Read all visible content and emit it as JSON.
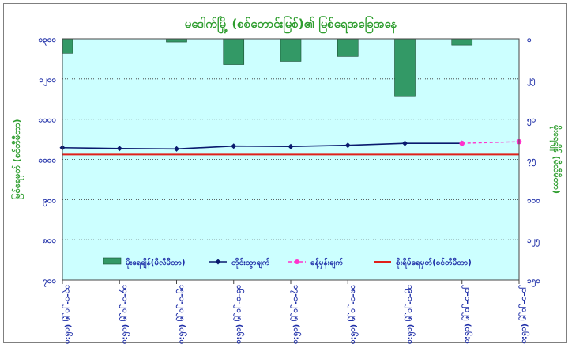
{
  "chart_data": {
    "type": "bar+line",
    "title": "မဒေါက်မြို့ (စစ်တောင်းမြစ်)၏ မြစ်ရေအခြေအနေ",
    "ylabel_left": "မြစ်ရေမှတ် (စင်တီမီတာ)",
    "ylabel_right": "မိုးရေချိန် (မီလီမီတာ)",
    "y_left": {
      "min": 700,
      "max": 1300,
      "ticks": [
        "၁၃၀၀",
        "၁၂၀၀",
        "၁၁၀၀",
        "၁၀၀၀",
        "၉၀၀",
        "၈၀၀",
        "၇၀၀"
      ],
      "tick_values": [
        1300,
        1200,
        1100,
        1000,
        900,
        800,
        700
      ]
    },
    "y_right": {
      "min": 0,
      "max": 150,
      "inverted": true,
      "ticks": [
        "၀",
        "၂၅",
        "၅၀",
        "၇၅",
        "၁၀၀",
        "၁၂၅",
        "၁၅၀"
      ],
      "tick_values": [
        0,
        25,
        50,
        75,
        100,
        125,
        150
      ]
    },
    "categories": [
      "၁၃-၁-၂၀၂၅ (၀၆:၀၀)",
      "၁၄-၁-၂၀၂၅ (၀၆:၀၀)",
      "၁၅-၁-၂၀၂၅ (၀၆:၀၀)",
      "၁၆-၁-၂၀၂၅ (၀၆:၀၀)",
      "၁၇-၁-၂၀၂၅ (၀၆:၀၀)",
      "၁၈-၁-၂၀၂၅ (၀၆:၀၀)",
      "၁၉-၁-၂၀၂၅ (၀၆:၀၀)",
      "၂၀-၁-၂၀၂၅ (၀၆:၀၀)",
      "၂၁-၁-၂၀၂၅ (၀၆:၀၀)"
    ],
    "series": [
      {
        "name": "မိုးရေချိန်(မီလီမီတာ)",
        "kind": "bar",
        "axis": "right",
        "color": "#339966",
        "values": [
          9,
          0,
          2,
          16,
          14,
          11,
          36,
          4,
          0
        ]
      },
      {
        "name": "တိုင်းထွာချက်",
        "kind": "line",
        "axis": "left",
        "color": "#0a1a6e",
        "values": [
          1029,
          1027,
          1026,
          1033,
          1032,
          1035,
          1040,
          1040,
          null
        ]
      },
      {
        "name": "ခန့်မှန်းချက်",
        "kind": "dashed",
        "axis": "left",
        "color": "#ff33cc",
        "values": [
          null,
          null,
          null,
          null,
          null,
          null,
          null,
          1040,
          1044
        ]
      },
      {
        "name": "စိုးရိမ်ရေမှတ်(စင်တီမီတာ)",
        "kind": "hline",
        "axis": "left",
        "color": "#e0201a",
        "value": 1012
      }
    ],
    "legend_placement": "bottom-inside",
    "grid": "horizontal-dotted",
    "plot_background": "#ccffff"
  }
}
